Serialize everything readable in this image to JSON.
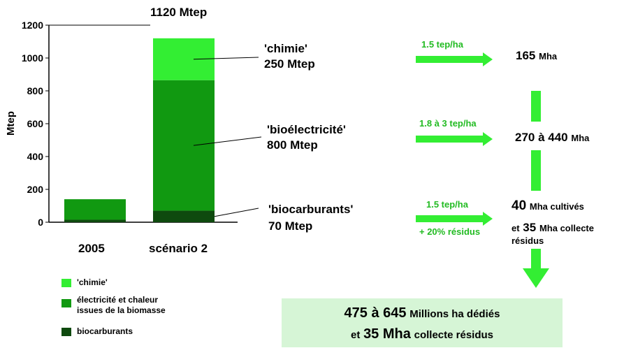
{
  "colors": {
    "chimie": "#33ee33",
    "electricite": "#119911",
    "biocarburants": "#0e4a0e",
    "arrow": "#33ee33",
    "box": "#d6f5d6"
  },
  "chart_data": {
    "type": "bar",
    "stacked": true,
    "categories": [
      "2005",
      "scénario 2"
    ],
    "series": [
      {
        "name": "biocarburants",
        "values": [
          15,
          70
        ]
      },
      {
        "name": "électricité et chaleur issues de la biomasse",
        "values": [
          125,
          795
        ]
      },
      {
        "name": "'chimie'",
        "values": [
          0,
          255
        ]
      }
    ],
    "ylabel": "Mtep",
    "ylim": [
      0,
      1200
    ],
    "yticks": [
      0,
      200,
      400,
      600,
      800,
      1000,
      1200
    ],
    "total_label": "1120 Mtep",
    "grid": false,
    "legend_position": "bottom-left"
  },
  "legend": {
    "chimie": "'chimie'",
    "electricite_line1": "électricité et chaleur",
    "electricite_line2": "issues de la biomasse",
    "biocarburants": "biocarburants"
  },
  "annotations": {
    "chimie_name": "'chimie'",
    "chimie_value": "250 Mtep",
    "bioelec_name": "'bioélectricité'",
    "bioelec_value": "800 Mtep",
    "biocarb_name": "'biocarburants'",
    "biocarb_value": "70 Mtep"
  },
  "yields": {
    "chimie": "1.5 tep/ha",
    "bioelec": "1.8 à 3 tep/ha",
    "biocarb": "1.5 tep/ha",
    "biocarb_extra": "+ 20% résidus"
  },
  "areas": {
    "chimie_num": "165",
    "chimie_unit": "Mha",
    "bioelec_num": "270 à  440",
    "bioelec_unit": "Mha",
    "biocarb_num1": "40",
    "biocarb_unit1": "Mha cultivés",
    "biocarb_prefix2": "et",
    "biocarb_num2": "35",
    "biocarb_unit2": "Mha collecte",
    "biocarb_line3": "résidus"
  },
  "total": {
    "range": "475 à 645",
    "unit": "Millions ha dédiés",
    "prefix2": "et",
    "num2": "35 Mha",
    "rest2": "collecte résidus"
  }
}
